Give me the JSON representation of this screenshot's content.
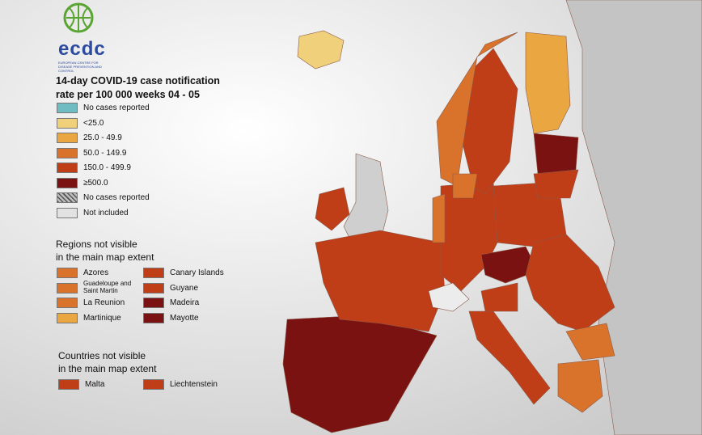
{
  "logo": {
    "name": "ecdc",
    "subtitle": "EUROPEAN CENTRE FOR DISEASE PREVENTION AND CONTROL"
  },
  "legend": {
    "title_lines": [
      "14-day COVID-19 case notification",
      "rate per 100 000 weeks  04 - 05"
    ],
    "items": [
      {
        "label": "No cases reported",
        "color": "#6fbdc3"
      },
      {
        "label": "<25.0",
        "color": "#f0d07a"
      },
      {
        "label": "25.0 - 49.9",
        "color": "#e9a641"
      },
      {
        "label": "50.0 - 149.9",
        "color": "#d9732b"
      },
      {
        "label": "150.0 - 499.9",
        "color": "#bf3d17"
      },
      {
        "label": "≥500.0",
        "color": "#7a1212"
      },
      {
        "label": "No cases reported",
        "color": "#bdbdbd",
        "style": "hatched"
      },
      {
        "label": "Not included",
        "color": "#e2e2e2"
      }
    ]
  },
  "regions": {
    "title_lines": [
      "Regions not visible",
      "in the main map extent"
    ],
    "items": [
      {
        "label": "Azores",
        "color": "#d9732b"
      },
      {
        "label": "Guadeloupe and Saint Martin",
        "color": "#d9732b"
      },
      {
        "label": "La Reunion",
        "color": "#d9732b"
      },
      {
        "label": "Martinique",
        "color": "#e9a641"
      },
      {
        "label": "Canary Islands",
        "color": "#bf3d17"
      },
      {
        "label": "Guyane",
        "color": "#bf3d17"
      },
      {
        "label": "Madeira",
        "color": "#7a1212"
      },
      {
        "label": "Mayotte",
        "color": "#7a1212"
      }
    ]
  },
  "countries": {
    "title_lines": [
      "Countries not visible",
      "in the main map extent"
    ],
    "items": [
      {
        "label": "Malta",
        "color": "#bf3d17"
      },
      {
        "label": "Liechtenstein",
        "color": "#bf3d17"
      }
    ]
  }
}
